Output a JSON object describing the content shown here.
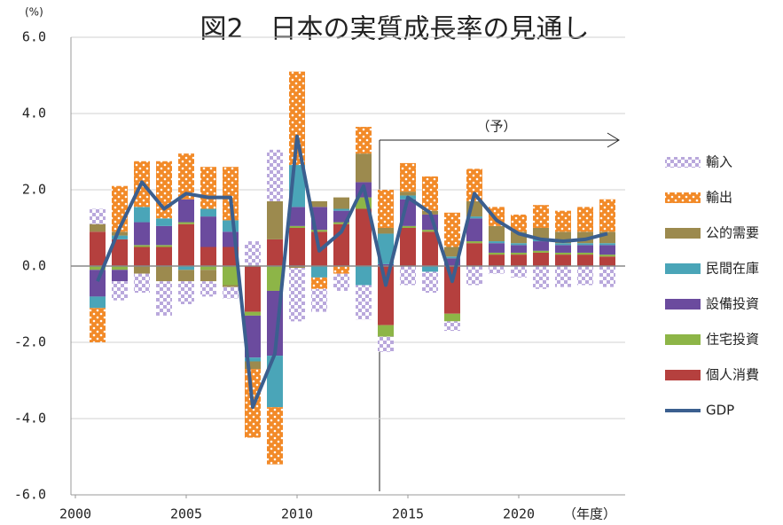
{
  "chart_data": {
    "type": "bar",
    "title": "図2　日本の実質成長率の見通し",
    "y_unit": "(%)",
    "x_unit": "（年度）",
    "annotation": "（予）",
    "x": [
      2001,
      2002,
      2003,
      2004,
      2005,
      2006,
      2007,
      2008,
      2009,
      2010,
      2011,
      2012,
      2013,
      2014,
      2015,
      2016,
      2017,
      2018,
      2019,
      2020,
      2021,
      2022,
      2023,
      2024
    ],
    "xlim": [
      2000,
      2025
    ],
    "xticks": [
      2000,
      2005,
      2010,
      2015,
      2020
    ],
    "ylim": [
      -6,
      6
    ],
    "yticks": [
      {
        "value": -6,
        "label": "-6.0"
      },
      {
        "value": -4,
        "label": "-4.0"
      },
      {
        "value": -2,
        "label": "-2.0"
      },
      {
        "value": 0,
        "label": "0.0"
      },
      {
        "value": 2,
        "label": "2.0"
      },
      {
        "value": 4,
        "label": "4.0"
      },
      {
        "value": 6,
        "label": "6.0"
      }
    ],
    "grid": true,
    "stacked": true,
    "series": [
      {
        "name": "個人消費",
        "color": "#b5403e",
        "values": [
          0.9,
          0.7,
          0.5,
          0.5,
          1.1,
          0.5,
          0.5,
          -1.2,
          0.7,
          1.0,
          0.9,
          1.1,
          1.5,
          -1.55,
          1.0,
          0.9,
          -1.25,
          0.6,
          0.3,
          0.3,
          0.35,
          0.3,
          0.3,
          0.25
        ]
      },
      {
        "name": "住宅投資",
        "color": "#8db547",
        "values": [
          -0.1,
          -0.1,
          0.05,
          0.05,
          0.05,
          -0.1,
          -0.5,
          -0.1,
          -0.65,
          0.05,
          0.05,
          0.05,
          0.3,
          -0.3,
          0.05,
          0.05,
          -0.2,
          0.05,
          0.05,
          0.05,
          0.05,
          0.05,
          0.05,
          0.05
        ]
      },
      {
        "name": "設備投資",
        "color": "#6b4b9e",
        "values": [
          -0.7,
          -0.3,
          0.6,
          0.5,
          0.6,
          0.8,
          0.4,
          -1.1,
          -1.7,
          0.5,
          0.6,
          0.3,
          0.4,
          0.05,
          0.7,
          0.4,
          0.2,
          0.6,
          0.25,
          0.2,
          0.25,
          0.2,
          0.2,
          0.25
        ]
      },
      {
        "name": "民間在庫",
        "color": "#4aa5b8",
        "values": [
          -0.3,
          0.1,
          0.4,
          0.2,
          -0.1,
          0.2,
          0.3,
          -0.1,
          -1.35,
          1.1,
          -0.3,
          0.05,
          -0.5,
          0.8,
          0.1,
          -0.15,
          0.05,
          0.05,
          0.05,
          0.05,
          0.05,
          0.05,
          0.05,
          0.05
        ]
      },
      {
        "name": "公的需要",
        "color": "#9c8a4e",
        "values": [
          0.2,
          0.1,
          -0.2,
          -0.4,
          -0.3,
          -0.3,
          -0.05,
          -0.2,
          1.0,
          -0.05,
          0.15,
          0.3,
          0.75,
          0.15,
          0.1,
          0.1,
          0.25,
          0.4,
          0.4,
          0.3,
          0.3,
          0.3,
          0.3,
          0.3
        ]
      },
      {
        "name": "輸出",
        "color": "#f28a28",
        "pattern": "dots",
        "values": [
          -0.9,
          1.2,
          1.2,
          1.5,
          1.2,
          1.1,
          1.4,
          -1.8,
          -1.5,
          2.45,
          -0.3,
          -0.2,
          0.7,
          1.0,
          0.75,
          0.9,
          0.9,
          0.85,
          0.5,
          0.45,
          0.6,
          0.55,
          0.65,
          0.85
        ]
      },
      {
        "name": "輸入",
        "color": "#b9a8dc",
        "pattern": "check",
        "values": [
          0.4,
          -0.5,
          -0.5,
          -0.9,
          -0.6,
          -0.4,
          -0.3,
          0.65,
          1.35,
          -1.4,
          -0.6,
          -0.45,
          -0.9,
          -0.4,
          -0.5,
          -0.55,
          -0.25,
          -0.5,
          -0.2,
          -0.3,
          -0.6,
          -0.55,
          -0.5,
          -0.55
        ]
      },
      {
        "name": "GDP",
        "color": "#3b5f8f",
        "type": "line",
        "values": [
          -0.4,
          1.0,
          2.2,
          1.5,
          1.9,
          1.8,
          1.8,
          -3.7,
          -2.3,
          3.4,
          0.4,
          0.9,
          2.1,
          -0.5,
          1.8,
          1.4,
          -0.4,
          1.9,
          1.2,
          0.85,
          0.7,
          0.65,
          0.7,
          0.85
        ]
      }
    ]
  }
}
